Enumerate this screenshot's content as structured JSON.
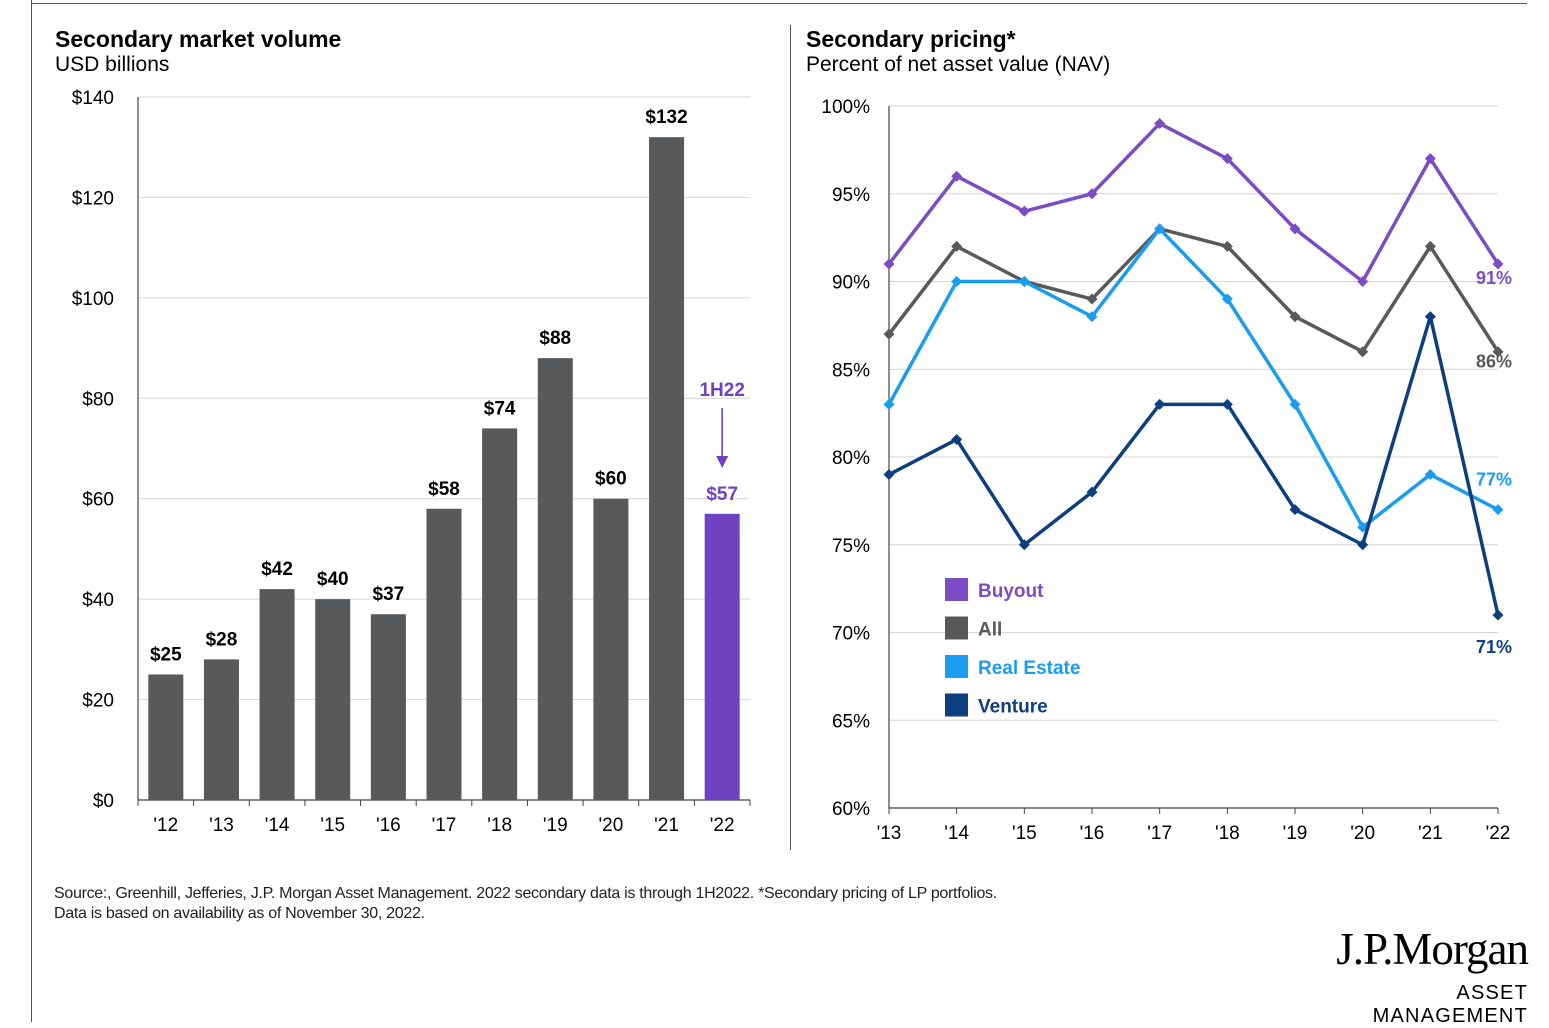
{
  "chart_data": [
    {
      "type": "bar",
      "title": "Secondary market volume",
      "subtitle": "USD billions",
      "categories": [
        "'12",
        "'13",
        "'14",
        "'15",
        "'16",
        "'17",
        "'18",
        "'19",
        "'20",
        "'21",
        "'22"
      ],
      "values": [
        25,
        28,
        42,
        40,
        37,
        58,
        74,
        88,
        60,
        132,
        57
      ],
      "value_labels": [
        "$25",
        "$28",
        "$42",
        "$40",
        "$37",
        "$58",
        "$74",
        "$88",
        "$60",
        "$132",
        "$57"
      ],
      "yticks": [
        0,
        20,
        40,
        60,
        80,
        100,
        120,
        140
      ],
      "ytick_labels": [
        "$0",
        "$20",
        "$40",
        "$60",
        "$80",
        "$100",
        "$120",
        "$140"
      ],
      "ylim": [
        0,
        140
      ],
      "grid": true,
      "colors": {
        "bar": "#58595b",
        "highlight": "#6f42c1"
      },
      "highlight_index": 10,
      "annotation": {
        "label": "1H22",
        "category_index": 10,
        "color": "#6f42c1"
      }
    },
    {
      "type": "line",
      "title": "Secondary pricing*",
      "subtitle": "Percent of net asset value (NAV)",
      "x": [
        "'13",
        "'14",
        "'15",
        "'16",
        "'17",
        "'18",
        "'19",
        "'20",
        "'21",
        "'22"
      ],
      "yticks": [
        60,
        65,
        70,
        75,
        80,
        85,
        90,
        95,
        100
      ],
      "ytick_labels": [
        "60%",
        "65%",
        "70%",
        "75%",
        "80%",
        "85%",
        "90%",
        "95%",
        "100%"
      ],
      "ylim": [
        60,
        100
      ],
      "grid": true,
      "legend_position": "bottom-left",
      "series": [
        {
          "name": "Buyout",
          "color": "#7b4cc4",
          "values": [
            91,
            96,
            94,
            95,
            99,
            97,
            93,
            90,
            97,
            91
          ],
          "end_label": "91%"
        },
        {
          "name": "All",
          "color": "#58595b",
          "values": [
            87,
            92,
            90,
            89,
            93,
            92,
            88,
            86,
            92,
            86
          ],
          "end_label": "86%"
        },
        {
          "name": "Real Estate",
          "color": "#1a9cf0",
          "values": [
            83,
            90,
            90,
            88,
            93,
            89,
            83,
            76,
            79,
            77
          ],
          "end_label": "77%"
        },
        {
          "name": "Venture",
          "color": "#0d3f80",
          "values": [
            79,
            81,
            75,
            78,
            83,
            83,
            77,
            75,
            88,
            71
          ],
          "end_label": "71%"
        }
      ]
    }
  ],
  "footer": {
    "source_line1": "Source:, Greenhill, Jefferies, J.P. Morgan Asset Management. 2022 secondary data is through 1H2022. *Secondary pricing of LP portfolios.",
    "source_line2": "Data is based on availability as of November 30, 2022."
  },
  "logo": {
    "name": "J.P.Morgan",
    "tagline": "ASSET MANAGEMENT"
  }
}
